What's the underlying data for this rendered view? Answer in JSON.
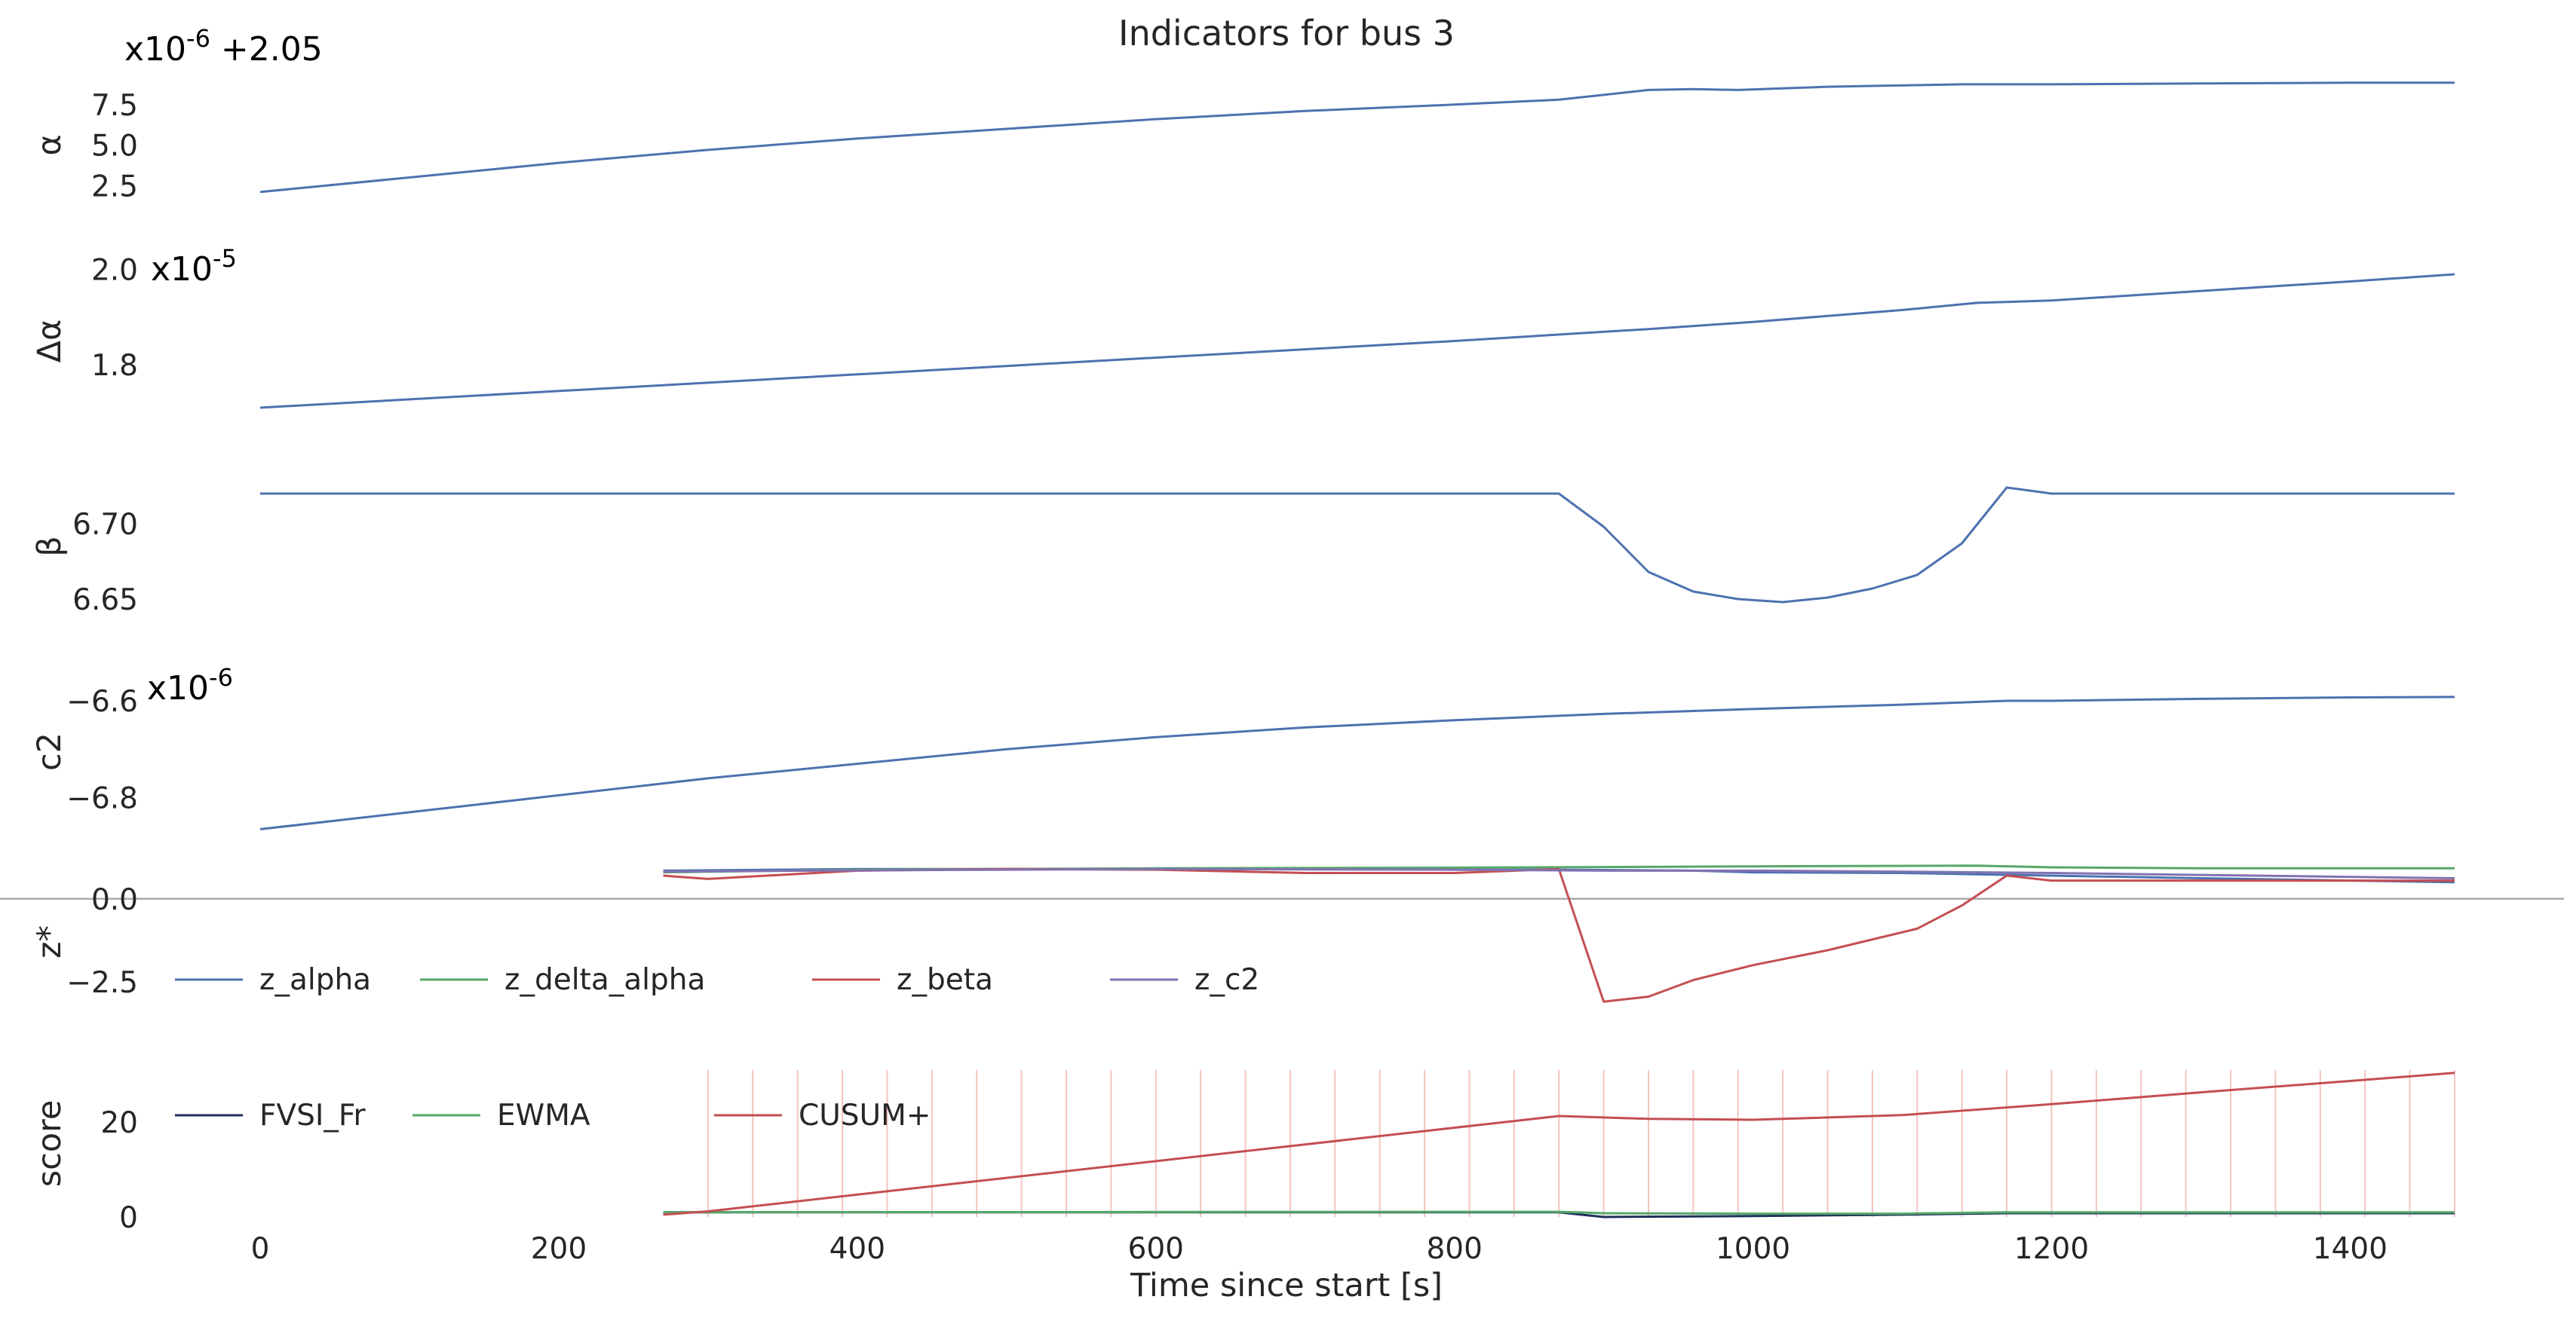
{
  "chart_data": {
    "type": "line",
    "title": "Indicators for bus 3",
    "xlabel": "Time since start [s]",
    "xlim": [
      0,
      1470
    ],
    "xticks": [
      "0",
      "200",
      "400",
      "600",
      "800",
      "1000",
      "1200",
      "1400"
    ],
    "grid": false,
    "colors": {
      "blue": "#4c72b0",
      "green": "#55a868",
      "red": "#c44e52",
      "purple": "#8172b2",
      "navy": "#1f2f5c",
      "vline": "#f3c4c0",
      "zero": "#aaaaaa"
    },
    "panels": [
      {
        "id": "alpha",
        "ylabel": "α",
        "offset_label": "x10",
        "offset_exp": "-6",
        "offset_add": "+2.05",
        "ylim": [
          0,
          10
        ],
        "yticks": [
          "7.5",
          "5.0",
          "2.5"
        ],
        "ytick_values": [
          7.5,
          5.0,
          2.5
        ],
        "series": [
          {
            "color": "#4c72b0",
            "x": [
              0,
              100,
              200,
              300,
              400,
              500,
              600,
              700,
              800,
              870,
              900,
              930,
              960,
              990,
              1020,
              1050,
              1080,
              1110,
              1140,
              1170,
              1200,
              1300,
              1400,
              1470
            ],
            "y": [
              2.1,
              3.0,
              3.9,
              4.7,
              5.4,
              6.0,
              6.6,
              7.1,
              7.5,
              7.8,
              8.1,
              8.4,
              8.45,
              8.4,
              8.5,
              8.6,
              8.65,
              8.7,
              8.75,
              8.75,
              8.75,
              8.8,
              8.85,
              8.85
            ]
          }
        ]
      },
      {
        "id": "delta_alpha",
        "ylabel": "Δα",
        "offset_label": "x10",
        "offset_exp": "-5",
        "ylim": [
          1.68,
          2.02
        ],
        "yticks": [
          "2.0",
          "1.8"
        ],
        "ytick_values": [
          2.0,
          1.8
        ],
        "series": [
          {
            "color": "#4c72b0",
            "x": [
              0,
              200,
              400,
              600,
              800,
              930,
              1000,
              1100,
              1150,
              1200,
              1300,
              1400,
              1470
            ],
            "y": [
              1.71,
              1.745,
              1.78,
              1.815,
              1.85,
              1.875,
              1.89,
              1.915,
              1.93,
              1.935,
              1.955,
              1.975,
              1.99
            ]
          }
        ]
      },
      {
        "id": "beta",
        "ylabel": "β",
        "ylim": [
          6.63,
          6.74
        ],
        "yticks": [
          "6.70",
          "6.65"
        ],
        "ytick_values": [
          6.7,
          6.65
        ],
        "series": [
          {
            "color": "#4c72b0",
            "x": [
              0,
              870,
              900,
              930,
              960,
              990,
              1020,
              1050,
              1080,
              1110,
              1140,
              1170,
              1200,
              1470
            ],
            "y": [
              6.72,
              6.72,
              6.698,
              6.668,
              6.655,
              6.65,
              6.648,
              6.651,
              6.657,
              6.666,
              6.687,
              6.724,
              6.72,
              6.72
            ]
          }
        ]
      },
      {
        "id": "c2",
        "ylabel": "c2",
        "offset_label": "x10",
        "offset_exp": "-6",
        "ylim": [
          -6.88,
          -6.53
        ],
        "yticks": [
          "−6.6",
          "−6.8"
        ],
        "ytick_values": [
          -6.6,
          -6.8
        ],
        "series": [
          {
            "color": "#4c72b0",
            "x": [
              0,
              100,
              200,
              300,
              400,
              500,
              600,
              700,
              800,
              900,
              1000,
              1100,
              1170,
              1200,
              1300,
              1400,
              1470
            ],
            "y": [
              -6.865,
              -6.83,
              -6.795,
              -6.76,
              -6.73,
              -6.7,
              -6.675,
              -6.655,
              -6.64,
              -6.627,
              -6.617,
              -6.608,
              -6.6,
              -6.6,
              -6.596,
              -6.593,
              -6.592
            ]
          }
        ]
      },
      {
        "id": "z",
        "ylabel": "z*",
        "ylim": [
          -3.8,
          1.2
        ],
        "yticks": [
          "0.0",
          "−2.5"
        ],
        "ytick_values": [
          0.0,
          -2.5
        ],
        "zero_line": true,
        "legend": [
          "z_alpha",
          "z_delta_alpha",
          "z_beta",
          "z_c2"
        ],
        "series": [
          {
            "name": "z_alpha",
            "color": "#4c72b0",
            "x": [
              270,
              400,
              600,
              800,
              870,
              960,
              1000,
              1100,
              1200,
              1300,
              1470
            ],
            "y": [
              0.85,
              0.9,
              0.9,
              0.88,
              0.88,
              0.85,
              0.8,
              0.78,
              0.7,
              0.62,
              0.5
            ]
          },
          {
            "name": "z_delta_alpha",
            "color": "#55a868",
            "x": [
              270,
              400,
              600,
              800,
              900,
              1000,
              1150,
              1200,
              1300,
              1470
            ],
            "y": [
              0.8,
              0.88,
              0.92,
              0.94,
              0.96,
              0.98,
              1.0,
              0.95,
              0.92,
              0.92
            ]
          },
          {
            "name": "z_beta",
            "color": "#c44e52",
            "x": [
              270,
              300,
              400,
              500,
              600,
              700,
              800,
              870,
              900,
              930,
              960,
              1000,
              1050,
              1110,
              1140,
              1170,
              1200,
              1300,
              1400,
              1470
            ],
            "y": [
              0.7,
              0.6,
              0.85,
              0.9,
              0.88,
              0.78,
              0.78,
              0.9,
              -3.1,
              -2.95,
              -2.45,
              -2.0,
              -1.55,
              -0.9,
              -0.2,
              0.7,
              0.55,
              0.55,
              0.55,
              0.55
            ]
          },
          {
            "name": "z_c2",
            "color": "#8172b2",
            "x": [
              270,
              400,
              600,
              800,
              900,
              1000,
              1100,
              1200,
              1300,
              1470
            ],
            "y": [
              0.82,
              0.86,
              0.9,
              0.88,
              0.85,
              0.85,
              0.82,
              0.78,
              0.72,
              0.62
            ]
          }
        ]
      },
      {
        "id": "score",
        "ylabel": "score",
        "ylim": [
          0,
          31
        ],
        "yticks": [
          "20",
          "0"
        ],
        "ytick_values": [
          20,
          0
        ],
        "legend": [
          "FVSI_Fr",
          "EWMA",
          "CUSUM+"
        ],
        "event_lines_x": [
          300,
          330,
          360,
          390,
          420,
          450,
          480,
          510,
          540,
          570,
          600,
          630,
          660,
          690,
          720,
          750,
          780,
          810,
          840,
          870,
          900,
          930,
          960,
          990,
          1020,
          1050,
          1080,
          1110,
          1140,
          1170,
          1200,
          1230,
          1260,
          1290,
          1320,
          1350,
          1380,
          1410,
          1440,
          1470
        ],
        "series": [
          {
            "name": "FVSI_Fr",
            "color": "#1f2f5c",
            "x": [
              270,
              870,
              900,
              1000,
              1100,
              1170,
              1200,
              1470
            ],
            "y": [
              1.0,
              1.0,
              0.0,
              0.2,
              0.5,
              0.8,
              0.8,
              0.8
            ]
          },
          {
            "name": "EWMA",
            "color": "#55a868",
            "x": [
              270,
              870,
              900,
              1000,
              1100,
              1170,
              1200,
              1470
            ],
            "y": [
              1.0,
              1.1,
              0.8,
              0.7,
              0.7,
              1.0,
              1.0,
              1.0
            ]
          },
          {
            "name": "CUSUM+",
            "color": "#c44e52",
            "x": [
              270,
              300,
              870,
              930,
              1000,
              1100,
              1200,
              1300,
              1400,
              1470
            ],
            "y": [
              0.5,
              1.2,
              21.3,
              20.7,
              20.5,
              21.5,
              23.8,
              26.3,
              28.7,
              30.4
            ]
          }
        ]
      }
    ]
  }
}
